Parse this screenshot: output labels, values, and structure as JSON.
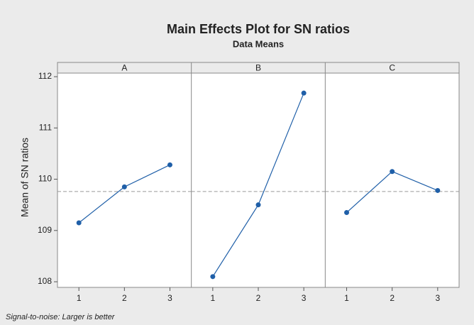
{
  "chart_data": {
    "type": "line",
    "title": "Main Effects Plot for SN ratios",
    "subtitle": "Data Means",
    "ylabel": "Mean of SN ratios",
    "footnote": "Signal-to-noise: Larger is better",
    "color": "#1f5fa8",
    "mean_line": 109.76,
    "ylim": [
      107.89,
      112.07
    ],
    "yticks": [
      108,
      109,
      110,
      111,
      112
    ],
    "panels": [
      {
        "name": "A",
        "categories": [
          "1",
          "2",
          "3"
        ],
        "values": [
          109.15,
          109.85,
          110.28
        ]
      },
      {
        "name": "B",
        "categories": [
          "1",
          "2",
          "3"
        ],
        "values": [
          108.1,
          109.5,
          111.68
        ]
      },
      {
        "name": "C",
        "categories": [
          "1",
          "2",
          "3"
        ],
        "values": [
          109.35,
          110.15,
          109.78
        ]
      }
    ]
  }
}
